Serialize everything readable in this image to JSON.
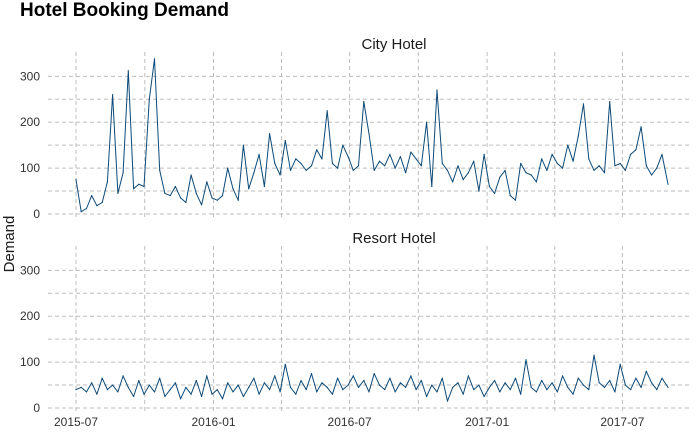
{
  "chart_data": {
    "type": "line",
    "title": "Hotel Booking Demand",
    "ylabel": "Demand",
    "xlabel": "",
    "colors": {
      "series": "#0d4a78",
      "grid": "#bdbdbd"
    },
    "grid": true,
    "layout": "two stacked panels with shared axes",
    "x_range": [
      "2015-07-01",
      "2017-08-31"
    ],
    "x_ticks": [
      "2015-07",
      "2016-01",
      "2016-07",
      "2017-01",
      "2017-07"
    ],
    "ylim": [
      0,
      340
    ],
    "y_ticks": [
      0,
      100,
      200,
      300
    ],
    "panels": [
      {
        "strip_label": "City Hotel",
        "series": [
          {
            "x": [
              "2015-07-01",
              "2015-07-08",
              "2015-07-15",
              "2015-07-22",
              "2015-07-29",
              "2015-08-05",
              "2015-08-12",
              "2015-08-19",
              "2015-08-26",
              "2015-09-02",
              "2015-09-09",
              "2015-09-16",
              "2015-09-23",
              "2015-09-30",
              "2015-10-07",
              "2015-10-14",
              "2015-10-21",
              "2015-10-28",
              "2015-11-04",
              "2015-11-11",
              "2015-11-18",
              "2015-11-25",
              "2015-12-02",
              "2015-12-09",
              "2015-12-16",
              "2015-12-23",
              "2015-12-30",
              "2016-01-06",
              "2016-01-13",
              "2016-01-20",
              "2016-01-27",
              "2016-02-03",
              "2016-02-10",
              "2016-02-17",
              "2016-02-24",
              "2016-03-02",
              "2016-03-09",
              "2016-03-16",
              "2016-03-23",
              "2016-03-30",
              "2016-04-06",
              "2016-04-13",
              "2016-04-20",
              "2016-04-27",
              "2016-05-04",
              "2016-05-11",
              "2016-05-18",
              "2016-05-25",
              "2016-06-01",
              "2016-06-08",
              "2016-06-15",
              "2016-06-22",
              "2016-06-29",
              "2016-07-06",
              "2016-07-13",
              "2016-07-20",
              "2016-07-27",
              "2016-08-03",
              "2016-08-10",
              "2016-08-17",
              "2016-08-24",
              "2016-08-31",
              "2016-09-07",
              "2016-09-14",
              "2016-09-21",
              "2016-09-28",
              "2016-10-05",
              "2016-10-12",
              "2016-10-19",
              "2016-10-26",
              "2016-11-02",
              "2016-11-09",
              "2016-11-16",
              "2016-11-23",
              "2016-11-30",
              "2016-12-07",
              "2016-12-14",
              "2016-12-21",
              "2016-12-28",
              "2017-01-04",
              "2017-01-11",
              "2017-01-18",
              "2017-01-25",
              "2017-02-01",
              "2017-02-08",
              "2017-02-15",
              "2017-02-22",
              "2017-03-01",
              "2017-03-08",
              "2017-03-15",
              "2017-03-22",
              "2017-03-29",
              "2017-04-05",
              "2017-04-12",
              "2017-04-19",
              "2017-04-26",
              "2017-05-03",
              "2017-05-10",
              "2017-05-17",
              "2017-05-24",
              "2017-05-31",
              "2017-06-07",
              "2017-06-14",
              "2017-06-21",
              "2017-06-28",
              "2017-07-05",
              "2017-07-12",
              "2017-07-19",
              "2017-07-26",
              "2017-08-02",
              "2017-08-09",
              "2017-08-16",
              "2017-08-23",
              "2017-08-31"
            ],
            "y": [
              75,
              5,
              12,
              40,
              18,
              25,
              70,
              260,
              45,
              90,
              312,
              55,
              65,
              60,
              250,
              338,
              95,
              45,
              40,
              60,
              35,
              25,
              85,
              45,
              20,
              70,
              35,
              30,
              40,
              100,
              55,
              30,
              150,
              55,
              90,
              130,
              60,
              175,
              110,
              85,
              160,
              95,
              120,
              110,
              95,
              105,
              140,
              120,
              225,
              110,
              100,
              150,
              125,
              95,
              105,
              245,
              175,
              95,
              115,
              105,
              130,
              100,
              125,
              90,
              135,
              120,
              105,
              200,
              60,
              270,
              110,
              95,
              70,
              105,
              75,
              90,
              115,
              50,
              130,
              60,
              45,
              80,
              95,
              40,
              30,
              110,
              90,
              85,
              70,
              120,
              95,
              130,
              110,
              100,
              150,
              115,
              170,
              240,
              120,
              95,
              105,
              90,
              245,
              105,
              110,
              95,
              130,
              140,
              190,
              105,
              85,
              100,
              130,
              65
            ]
          }
        ]
      },
      {
        "strip_label": "Resort Hotel",
        "series": [
          {
            "x": [
              "2015-07-01",
              "2015-07-08",
              "2015-07-15",
              "2015-07-22",
              "2015-07-29",
              "2015-08-05",
              "2015-08-12",
              "2015-08-19",
              "2015-08-26",
              "2015-09-02",
              "2015-09-09",
              "2015-09-16",
              "2015-09-23",
              "2015-09-30",
              "2015-10-07",
              "2015-10-14",
              "2015-10-21",
              "2015-10-28",
              "2015-11-04",
              "2015-11-11",
              "2015-11-18",
              "2015-11-25",
              "2015-12-02",
              "2015-12-09",
              "2015-12-16",
              "2015-12-23",
              "2015-12-30",
              "2016-01-06",
              "2016-01-13",
              "2016-01-20",
              "2016-01-27",
              "2016-02-03",
              "2016-02-10",
              "2016-02-17",
              "2016-02-24",
              "2016-03-02",
              "2016-03-09",
              "2016-03-16",
              "2016-03-23",
              "2016-03-30",
              "2016-04-06",
              "2016-04-13",
              "2016-04-20",
              "2016-04-27",
              "2016-05-04",
              "2016-05-11",
              "2016-05-18",
              "2016-05-25",
              "2016-06-01",
              "2016-06-08",
              "2016-06-15",
              "2016-06-22",
              "2016-06-29",
              "2016-07-06",
              "2016-07-13",
              "2016-07-20",
              "2016-07-27",
              "2016-08-03",
              "2016-08-10",
              "2016-08-17",
              "2016-08-24",
              "2016-08-31",
              "2016-09-07",
              "2016-09-14",
              "2016-09-21",
              "2016-09-28",
              "2016-10-05",
              "2016-10-12",
              "2016-10-19",
              "2016-10-26",
              "2016-11-02",
              "2016-11-09",
              "2016-11-16",
              "2016-11-23",
              "2016-11-30",
              "2016-12-07",
              "2016-12-14",
              "2016-12-21",
              "2016-12-28",
              "2017-01-04",
              "2017-01-11",
              "2017-01-18",
              "2017-01-25",
              "2017-02-01",
              "2017-02-08",
              "2017-02-15",
              "2017-02-22",
              "2017-03-01",
              "2017-03-08",
              "2017-03-15",
              "2017-03-22",
              "2017-03-29",
              "2017-04-05",
              "2017-04-12",
              "2017-04-19",
              "2017-04-26",
              "2017-05-03",
              "2017-05-10",
              "2017-05-17",
              "2017-05-24",
              "2017-05-31",
              "2017-06-07",
              "2017-06-14",
              "2017-06-21",
              "2017-06-28",
              "2017-07-05",
              "2017-07-12",
              "2017-07-19",
              "2017-07-26",
              "2017-08-02",
              "2017-08-09",
              "2017-08-16",
              "2017-08-23",
              "2017-08-31"
            ],
            "y": [
              40,
              45,
              35,
              55,
              30,
              65,
              40,
              50,
              35,
              70,
              45,
              25,
              60,
              30,
              50,
              35,
              65,
              25,
              40,
              55,
              20,
              45,
              30,
              60,
              25,
              70,
              30,
              40,
              20,
              55,
              35,
              50,
              25,
              45,
              65,
              30,
              55,
              40,
              70,
              35,
              95,
              45,
              30,
              60,
              40,
              75,
              35,
              55,
              45,
              30,
              65,
              40,
              50,
              70,
              45,
              60,
              35,
              75,
              50,
              40,
              65,
              35,
              55,
              45,
              70,
              40,
              60,
              25,
              50,
              35,
              65,
              15,
              45,
              55,
              30,
              70,
              40,
              50,
              25,
              45,
              60,
              35,
              55,
              40,
              65,
              30,
              105,
              45,
              35,
              60,
              40,
              55,
              35,
              70,
              45,
              30,
              65,
              50,
              40,
              115,
              55,
              45,
              60,
              35,
              95,
              50,
              40,
              65,
              45,
              80,
              55,
              40,
              65,
              45
            ]
          }
        ]
      }
    ]
  }
}
